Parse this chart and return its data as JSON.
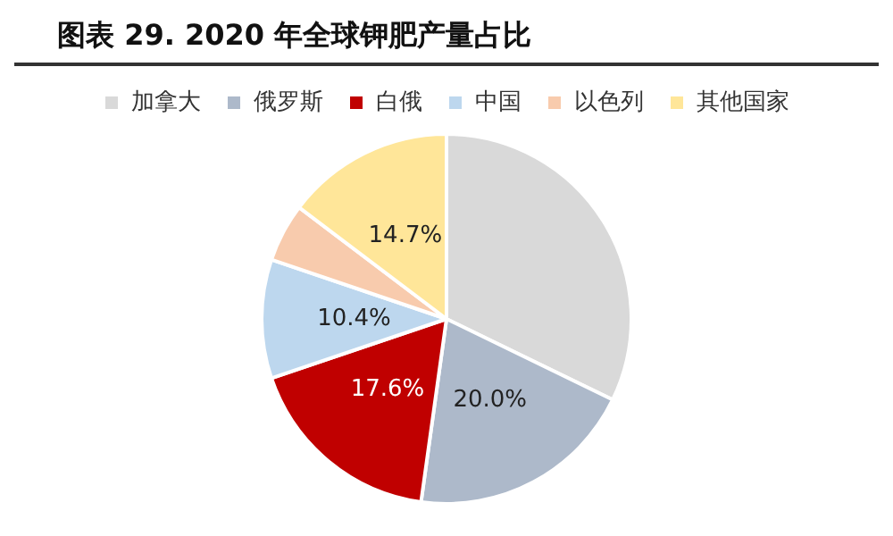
{
  "chart_data": {
    "type": "pie",
    "title": "图表 29. 2020 年全球钾肥产量占比",
    "categories": [
      "加拿大",
      "俄罗斯",
      "白俄",
      "中国",
      "以色列",
      "其他国家"
    ],
    "values": [
      32.2,
      20.0,
      17.6,
      10.4,
      5.1,
      14.7
    ],
    "value_labels": [
      null,
      "20.0%",
      "17.6%",
      "10.4%",
      null,
      "14.7%"
    ],
    "colors": [
      "#d9d9d9",
      "#adb9ca",
      "#c00000",
      "#bdd7ee",
      "#f8cbad",
      "#ffe699"
    ],
    "legend": "top"
  }
}
